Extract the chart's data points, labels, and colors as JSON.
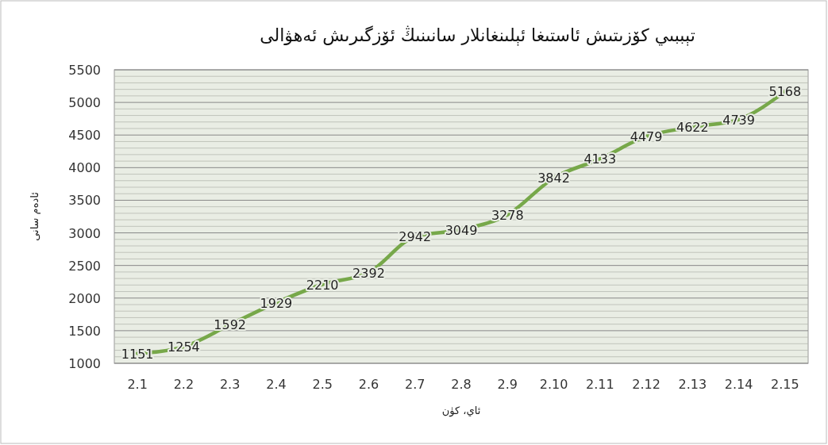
{
  "chart_data": {
    "type": "line",
    "title": "تېببىي كۆزىتىش ئاستىغا ئېلىنغانلار سانىنىڭ ئۆزگىرىش ئەھۋالى",
    "xlabel": "ئاي، كۈن",
    "ylabel": "ئادەم سانى",
    "categories": [
      "2.1",
      "2.2",
      "2.3",
      "2.4",
      "2.5",
      "2.6",
      "2.7",
      "2.8",
      "2.9",
      "2.10",
      "2.11",
      "2.12",
      "2.13",
      "2.14",
      "2.15"
    ],
    "series": [
      {
        "color": "#77a84a",
        "values": [
          1151,
          1254,
          1592,
          1929,
          2210,
          2392,
          2942,
          3049,
          3278,
          3842,
          4133,
          4479,
          4622,
          4739,
          5168
        ]
      }
    ],
    "ylim": [
      1000,
      5500
    ],
    "yticks": [
      1000,
      1500,
      2000,
      2500,
      3000,
      3500,
      4000,
      4500,
      5000,
      5500
    ],
    "grid": "y",
    "data_labels": true,
    "marker": "none",
    "line_style": "solid"
  }
}
